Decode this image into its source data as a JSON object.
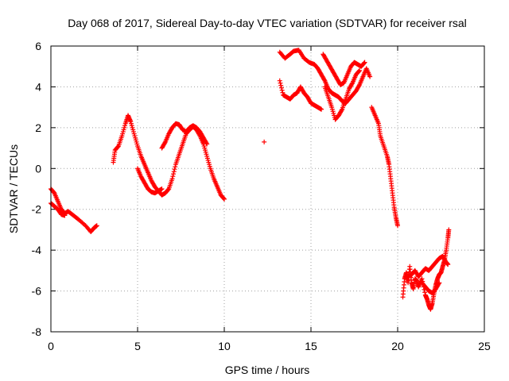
{
  "chart_data": {
    "type": "scatter",
    "title": "Day 068 of 2017, Sidereal Day-to-day VTEC variation (SDTVAR) for receiver rsal",
    "xlabel": "GPS time / hours",
    "ylabel": "SDTVAR / TECUs",
    "xlim": [
      0,
      25
    ],
    "ylim": [
      -8,
      6
    ],
    "xticks": [
      0,
      5,
      10,
      15,
      20,
      25
    ],
    "yticks": [
      -8,
      -6,
      -4,
      -2,
      0,
      2,
      4,
      6
    ],
    "grid": true,
    "marker": "+",
    "color": "#ff0000",
    "series": [
      {
        "segments": [
          [
            [
              0.0,
              -1.0
            ],
            [
              0.2,
              -1.2
            ],
            [
              0.4,
              -1.6
            ],
            [
              0.6,
              -2.0
            ],
            [
              0.8,
              -2.2
            ],
            [
              1.0,
              -2.1
            ],
            [
              1.3,
              -2.3
            ],
            [
              1.6,
              -2.5
            ],
            [
              2.0,
              -2.8
            ],
            [
              2.3,
              -3.1
            ],
            [
              2.5,
              -2.9
            ],
            [
              2.65,
              -2.8
            ]
          ],
          [
            [
              0.0,
              -1.7
            ],
            [
              0.2,
              -1.85
            ],
            [
              0.4,
              -2.0
            ],
            [
              0.6,
              -2.25
            ],
            [
              0.8,
              -2.3
            ]
          ],
          [
            [
              3.6,
              0.3
            ],
            [
              3.7,
              0.9
            ],
            [
              3.9,
              1.1
            ],
            [
              4.1,
              1.6
            ],
            [
              4.3,
              2.2
            ],
            [
              4.45,
              2.6
            ],
            [
              4.6,
              2.3
            ],
            [
              4.8,
              1.7
            ],
            [
              5.0,
              1.1
            ],
            [
              5.2,
              0.6
            ],
            [
              5.4,
              0.2
            ],
            [
              5.6,
              -0.2
            ],
            [
              5.8,
              -0.6
            ],
            [
              6.0,
              -0.9
            ],
            [
              6.2,
              -1.1
            ],
            [
              6.4,
              -1.3
            ],
            [
              6.6,
              -1.2
            ],
            [
              6.8,
              -1.0
            ],
            [
              7.0,
              -0.5
            ],
            [
              7.2,
              0.2
            ],
            [
              7.4,
              0.7
            ],
            [
              7.6,
              1.2
            ],
            [
              7.8,
              1.7
            ],
            [
              8.0,
              1.9
            ],
            [
              8.2,
              2.05
            ],
            [
              8.4,
              1.9
            ],
            [
              8.6,
              1.6
            ],
            [
              8.8,
              1.2
            ],
            [
              9.0,
              0.6
            ],
            [
              9.2,
              0.0
            ],
            [
              9.4,
              -0.5
            ],
            [
              9.6,
              -0.9
            ],
            [
              9.8,
              -1.3
            ],
            [
              10.0,
              -1.5
            ]
          ],
          [
            [
              5.0,
              0.0
            ],
            [
              5.2,
              -0.4
            ],
            [
              5.4,
              -0.7
            ],
            [
              5.6,
              -1.0
            ],
            [
              5.8,
              -1.15
            ],
            [
              6.0,
              -1.2
            ],
            [
              6.2,
              -1.1
            ],
            [
              6.4,
              -1.0
            ]
          ],
          [
            [
              6.4,
              1.0
            ],
            [
              6.6,
              1.3
            ],
            [
              6.8,
              1.7
            ],
            [
              7.0,
              2.0
            ],
            [
              7.2,
              2.2
            ],
            [
              7.4,
              2.15
            ],
            [
              7.6,
              1.9
            ],
            [
              7.8,
              1.8
            ],
            [
              8.0,
              2.0
            ],
            [
              8.2,
              2.1
            ],
            [
              8.4,
              2.0
            ],
            [
              8.6,
              1.8
            ],
            [
              8.8,
              1.5
            ],
            [
              9.0,
              1.2
            ]
          ],
          [
            [
              12.3,
              1.3
            ]
          ],
          [
            [
              13.2,
              5.7
            ],
            [
              13.5,
              5.4
            ],
            [
              13.8,
              5.6
            ],
            [
              14.0,
              5.75
            ],
            [
              14.3,
              5.8
            ],
            [
              14.6,
              5.4
            ],
            [
              14.9,
              5.2
            ],
            [
              15.2,
              5.1
            ],
            [
              15.4,
              4.9
            ],
            [
              15.6,
              4.6
            ],
            [
              15.8,
              4.3
            ],
            [
              16.0,
              3.9
            ],
            [
              16.2,
              3.7
            ],
            [
              16.4,
              3.6
            ],
            [
              16.6,
              3.5
            ],
            [
              16.8,
              3.3
            ],
            [
              17.0,
              3.2
            ],
            [
              17.2,
              3.4
            ],
            [
              17.4,
              3.6
            ],
            [
              17.6,
              3.8
            ],
            [
              17.8,
              4.1
            ],
            [
              18.0,
              4.5
            ],
            [
              18.2,
              4.9
            ],
            [
              18.4,
              4.5
            ]
          ],
          [
            [
              13.2,
              4.3
            ],
            [
              13.4,
              3.6
            ],
            [
              13.6,
              3.5
            ],
            [
              13.8,
              3.4
            ],
            [
              14.0,
              3.6
            ],
            [
              14.2,
              3.7
            ],
            [
              14.4,
              4.0
            ],
            [
              14.6,
              3.7
            ],
            [
              14.8,
              3.5
            ],
            [
              15.0,
              3.2
            ],
            [
              15.2,
              3.1
            ],
            [
              15.4,
              3.0
            ],
            [
              15.6,
              2.9
            ]
          ],
          [
            [
              15.7,
              5.6
            ],
            [
              15.9,
              5.3
            ],
            [
              16.1,
              5.0
            ],
            [
              16.3,
              4.7
            ],
            [
              16.5,
              4.4
            ],
            [
              16.7,
              4.1
            ],
            [
              16.9,
              4.2
            ],
            [
              17.1,
              4.6
            ],
            [
              17.3,
              5.0
            ],
            [
              17.5,
              5.2
            ],
            [
              17.7,
              5.1
            ],
            [
              17.9,
              5.0
            ],
            [
              18.1,
              5.2
            ]
          ],
          [
            [
              15.8,
              4.0
            ],
            [
              16.0,
              3.5
            ],
            [
              16.2,
              3.0
            ],
            [
              16.4,
              2.4
            ],
            [
              16.6,
              2.6
            ],
            [
              16.8,
              2.9
            ],
            [
              17.0,
              3.4
            ],
            [
              17.2,
              3.9
            ],
            [
              17.4,
              4.2
            ],
            [
              17.6,
              4.6
            ],
            [
              17.8,
              4.8
            ]
          ],
          [
            [
              18.5,
              3.0
            ],
            [
              18.7,
              2.6
            ],
            [
              18.9,
              2.2
            ],
            [
              19.0,
              1.6
            ],
            [
              19.2,
              1.1
            ],
            [
              19.4,
              0.6
            ],
            [
              19.5,
              0.2
            ],
            [
              19.6,
              -0.5
            ],
            [
              19.7,
              -1.2
            ],
            [
              19.8,
              -1.9
            ],
            [
              19.9,
              -2.4
            ],
            [
              20.0,
              -2.8
            ]
          ],
          [
            [
              20.3,
              -6.3
            ],
            [
              20.4,
              -5.4
            ],
            [
              20.5,
              -5.1
            ],
            [
              20.6,
              -5.6
            ],
            [
              20.7,
              -4.8
            ],
            [
              20.8,
              -5.6
            ],
            [
              20.9,
              -5.9
            ],
            [
              21.0,
              -5.4
            ],
            [
              21.1,
              -5.5
            ],
            [
              21.2,
              -5.8
            ],
            [
              21.4,
              -5.4
            ],
            [
              21.6,
              -6.2
            ],
            [
              21.7,
              -6.4
            ],
            [
              21.8,
              -6.7
            ],
            [
              21.9,
              -6.9
            ],
            [
              22.0,
              -6.6
            ],
            [
              22.1,
              -6.1
            ],
            [
              22.2,
              -5.7
            ],
            [
              22.3,
              -5.4
            ],
            [
              22.4,
              -5.2
            ],
            [
              22.5,
              -5.1
            ],
            [
              22.6,
              -4.8
            ],
            [
              22.7,
              -4.5
            ],
            [
              22.8,
              -4.0
            ],
            [
              22.9,
              -3.4
            ],
            [
              22.95,
              -3.0
            ]
          ],
          [
            [
              20.6,
              -5.3
            ],
            [
              20.8,
              -5.2
            ],
            [
              21.0,
              -5.0
            ],
            [
              21.2,
              -5.3
            ],
            [
              21.4,
              -5.1
            ],
            [
              21.6,
              -4.9
            ],
            [
              21.8,
              -5.0
            ],
            [
              22.0,
              -4.8
            ],
            [
              22.2,
              -4.6
            ],
            [
              22.4,
              -4.4
            ],
            [
              22.6,
              -4.3
            ],
            [
              22.8,
              -4.6
            ],
            [
              22.9,
              -4.7
            ]
          ],
          [
            [
              21.4,
              -5.6
            ],
            [
              21.6,
              -5.8
            ],
            [
              21.8,
              -6.0
            ],
            [
              22.0,
              -6.1
            ],
            [
              22.2,
              -5.9
            ],
            [
              22.4,
              -5.6
            ]
          ]
        ]
      }
    ]
  }
}
